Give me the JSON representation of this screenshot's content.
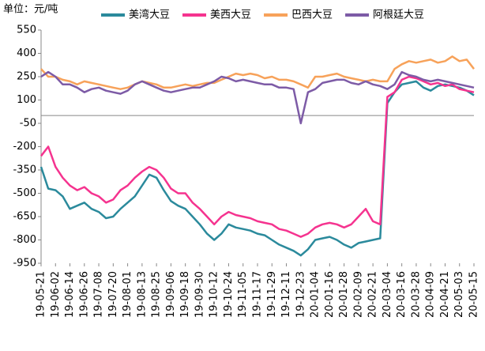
{
  "chart_data": {
    "type": "line",
    "unit_label": "单位：元/吨",
    "categories": [
      "19-05-21",
      null,
      "19-06-02",
      null,
      "19-06-14",
      null,
      "19-06-26",
      null,
      "19-07-08",
      null,
      "19-07-20",
      null,
      "19-08-01",
      null,
      "19-08-13",
      null,
      "19-08-25",
      null,
      "19-09-06",
      null,
      "19-09-18",
      null,
      "19-09-30",
      null,
      "19-10-12",
      null,
      "19-10-24",
      null,
      "19-11-05",
      null,
      "19-11-17",
      null,
      "19-11-29",
      null,
      "19-12-11",
      null,
      "19-12-23",
      null,
      "20-01-04",
      null,
      "20-01-16",
      null,
      "20-01-28",
      null,
      "20-02-09",
      null,
      "20-02-21",
      null,
      "20-03-04",
      null,
      "20-03-16",
      null,
      "20-03-28",
      null,
      "20-04-09",
      null,
      "20-04-21",
      null,
      "20-05-03",
      null,
      "20-05-15"
    ],
    "series": [
      {
        "name": "美湾大豆",
        "color": "#2b8a9c",
        "values": [
          -330,
          -470,
          -480,
          -520,
          -600,
          -580,
          -560,
          -600,
          -620,
          -660,
          -650,
          -600,
          -560,
          -520,
          -450,
          -380,
          -400,
          -480,
          -550,
          -580,
          -600,
          -650,
          -700,
          -760,
          -800,
          -760,
          -700,
          -720,
          -730,
          -740,
          -760,
          -770,
          -800,
          -830,
          -850,
          -870,
          -900,
          -860,
          -800,
          -790,
          -780,
          -800,
          -830,
          -850,
          -820,
          -810,
          -800,
          -790,
          80,
          150,
          200,
          210,
          220,
          180,
          160,
          190,
          200,
          190,
          180,
          160,
          130
        ]
      },
      {
        "name": "美西大豆",
        "color": "#f5338f",
        "values": [
          -260,
          -200,
          -330,
          -400,
          -450,
          -480,
          -460,
          -500,
          -520,
          -560,
          -540,
          -480,
          -450,
          -400,
          -360,
          -330,
          -350,
          -400,
          -470,
          -500,
          -500,
          -560,
          -600,
          -650,
          -700,
          -650,
          -620,
          -640,
          -650,
          -660,
          -680,
          -690,
          -700,
          -730,
          -740,
          -760,
          -780,
          -760,
          -720,
          -700,
          -690,
          -700,
          -720,
          -700,
          -650,
          -600,
          -680,
          -700,
          120,
          150,
          230,
          250,
          240,
          220,
          200,
          210,
          190,
          200,
          170,
          160,
          150
        ]
      },
      {
        "name": "巴西大豆",
        "color": "#f7a25a",
        "values": [
          300,
          250,
          250,
          230,
          220,
          200,
          220,
          210,
          200,
          190,
          180,
          170,
          180,
          200,
          220,
          210,
          200,
          180,
          180,
          190,
          200,
          190,
          200,
          210,
          210,
          230,
          250,
          270,
          260,
          270,
          260,
          240,
          250,
          230,
          230,
          220,
          200,
          180,
          250,
          250,
          260,
          270,
          250,
          240,
          230,
          220,
          230,
          220,
          220,
          300,
          330,
          350,
          340,
          350,
          360,
          340,
          350,
          380,
          350,
          360,
          300
        ]
      },
      {
        "name": "阿根廷大豆",
        "color": "#7d5ba6",
        "values": [
          250,
          280,
          250,
          200,
          200,
          180,
          150,
          170,
          180,
          160,
          150,
          140,
          160,
          200,
          220,
          200,
          180,
          160,
          150,
          160,
          170,
          180,
          180,
          200,
          220,
          250,
          240,
          220,
          230,
          220,
          210,
          200,
          200,
          180,
          180,
          170,
          -50,
          150,
          170,
          210,
          220,
          230,
          230,
          210,
          200,
          220,
          200,
          190,
          170,
          200,
          280,
          260,
          250,
          230,
          220,
          230,
          220,
          210,
          200,
          190,
          180
        ]
      }
    ],
    "ylim": [
      -950,
      550
    ],
    "yticks": [
      550,
      400,
      250,
      100,
      -50,
      -200,
      -350,
      -500,
      -650,
      -800,
      -950
    ],
    "grid": false
  }
}
